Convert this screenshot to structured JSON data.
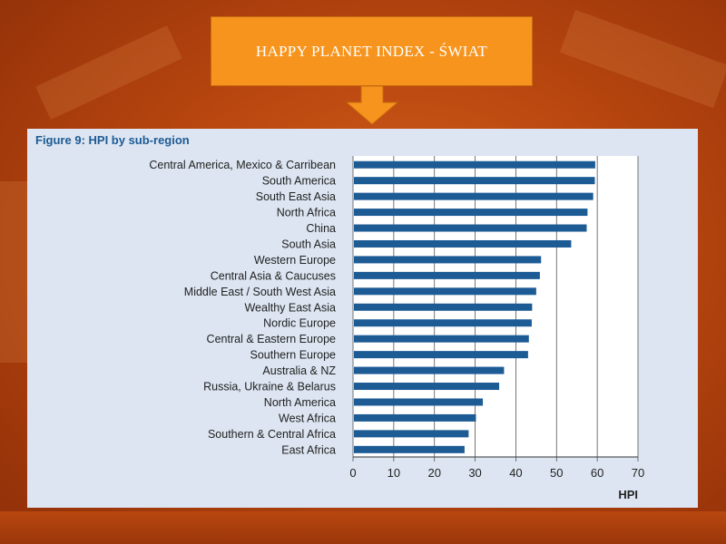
{
  "banner": {
    "title": "HAPPY PLANET INDEX - ŚWIAT"
  },
  "colors": {
    "bar": "#1d5b95",
    "banner": "#f7941d",
    "panel": "#dce5f1"
  },
  "chart_data": {
    "type": "bar",
    "orientation": "horizontal",
    "title": "Figure 9: HPI by sub-region",
    "xlabel": "HPI",
    "ylabel": "",
    "xlim": [
      0,
      70
    ],
    "xticks": [
      0,
      10,
      20,
      30,
      40,
      50,
      60,
      70
    ],
    "grid": "vertical",
    "categories": [
      "Central America, Mexico & Carribean",
      "South America",
      "South East Asia",
      "North Africa",
      "China",
      "South Asia",
      "Western Europe",
      "Central Asia & Caucuses",
      "Middle East / South West Asia",
      "Wealthy East Asia",
      "Nordic Europe",
      "Central & Eastern Europe",
      "Southern Europe",
      "Australia & NZ",
      "Russia, Ukraine & Belarus",
      "North America",
      "West Africa",
      "Southern & Central Africa",
      "East Africa"
    ],
    "values": [
      59.5,
      59.4,
      59.0,
      57.6,
      57.4,
      53.6,
      46.2,
      45.9,
      45.0,
      44.0,
      43.9,
      43.2,
      43.0,
      37.1,
      35.9,
      31.9,
      30.2,
      28.4,
      27.4
    ]
  }
}
